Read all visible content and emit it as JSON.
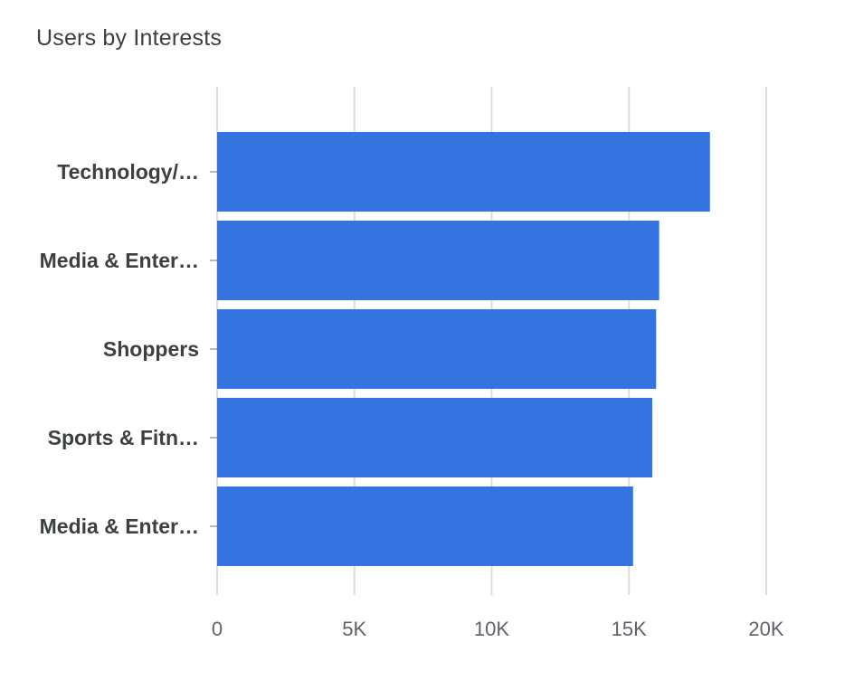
{
  "chart_data": {
    "type": "bar",
    "orientation": "horizontal",
    "title": "Users by Interests",
    "categories": [
      "Technology/…",
      "Media & Enter…",
      "Shoppers",
      "Sports & Fitn…",
      "Media & Enter…"
    ],
    "values": [
      17950,
      16100,
      15990,
      15850,
      15150
    ],
    "xlim": [
      0,
      20000
    ],
    "x_ticks": [
      0,
      5000,
      10000,
      15000,
      20000
    ],
    "x_tick_labels": [
      "0",
      "5K",
      "10K",
      "15K",
      "20K"
    ],
    "grid": true,
    "bar_color": "#3574e0",
    "grid_color": "#dadce0"
  }
}
